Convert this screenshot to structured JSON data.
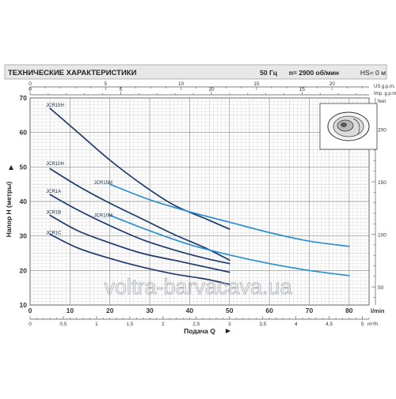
{
  "header": {
    "title": "ТЕХНИЧЕСКИЕ ХАРАКТЕРИСТИКИ",
    "freq": "50 Гц",
    "speed": "n= 2900 об/мин",
    "hs": "HS= 0 м"
  },
  "watermark": "voltra-barvacava.ua",
  "chart_data": {
    "type": "line",
    "title": "ТЕХНИЧЕСКИЕ ХАРАКТЕРИСТИКИ",
    "xlabel": "Подача Q",
    "ylabel": "Напор H (метры)",
    "x_unit": "l/min",
    "x2_unit": "m³/h",
    "top_units": [
      "US g.p.m.",
      "Imp. g.p.m."
    ],
    "right_unit": "feet",
    "xlim": [
      0,
      85
    ],
    "ylim": [
      10,
      70
    ],
    "grid": true,
    "x_ticks": [
      "0",
      "10",
      "20",
      "30",
      "40",
      "50",
      "60",
      "70",
      "80"
    ],
    "x_tick_values": [
      0,
      10,
      20,
      30,
      40,
      50,
      60,
      70,
      80
    ],
    "y_ticks": [
      "10",
      "20",
      "30",
      "40",
      "50",
      "60",
      "70"
    ],
    "y_tick_values": [
      10,
      20,
      30,
      40,
      50,
      60,
      70
    ],
    "x2_ticks": [
      "0",
      "0,5",
      "1",
      "1,5",
      "2",
      "2,5",
      "3",
      "3,5",
      "4",
      "4,5",
      "5"
    ],
    "x2_tick_values": [
      0,
      0.5,
      1,
      1.5,
      2,
      2.5,
      3,
      3.5,
      4,
      4.5,
      5
    ],
    "us_ticks": [
      "0",
      "5",
      "10",
      "15",
      "20"
    ],
    "us_tick_values": [
      0,
      5,
      10,
      15,
      20
    ],
    "imp_ticks": [
      "0",
      "5",
      "10",
      "15"
    ],
    "imp_tick_values": [
      0,
      5,
      10,
      15
    ],
    "feet_ticks": [
      "50",
      "100",
      "150",
      "200"
    ],
    "feet_tick_values": [
      50,
      100,
      150,
      200
    ],
    "series": [
      {
        "name": "JCR15H",
        "color": "#1c3a6e",
        "label_at": [
          4,
          67.5
        ],
        "x": [
          5,
          12,
          20,
          28,
          36,
          44,
          50
        ],
        "y": [
          67,
          60,
          52,
          45,
          39,
          35,
          32
        ]
      },
      {
        "name": "JCR10H",
        "color": "#1c3a6e",
        "label_at": [
          4,
          50.5
        ],
        "x": [
          5,
          12,
          20,
          28,
          36,
          44,
          50
        ],
        "y": [
          49.5,
          44.5,
          39.5,
          35,
          30.5,
          26.5,
          23
        ]
      },
      {
        "name": "JCR1A",
        "color": "#1c3a6e",
        "label_at": [
          4,
          42.5
        ],
        "x": [
          5,
          12,
          20,
          28,
          36,
          44,
          50
        ],
        "y": [
          42,
          37.5,
          33,
          29,
          26,
          23.5,
          22
        ]
      },
      {
        "name": "JCR1B",
        "color": "#1c3a6e",
        "label_at": [
          4,
          36.5
        ],
        "x": [
          5,
          12,
          20,
          28,
          36,
          44,
          50
        ],
        "y": [
          36,
          31.5,
          28,
          25,
          23,
          21,
          19.5
        ]
      },
      {
        "name": "JCR1C",
        "color": "#1c3a6e",
        "label_at": [
          4,
          30.5
        ],
        "x": [
          5,
          12,
          20,
          28,
          36,
          44,
          50
        ],
        "y": [
          30.5,
          26.5,
          23.5,
          21,
          19,
          17.5,
          16
        ]
      },
      {
        "name": "JCR15M",
        "color": "#2b8fd0",
        "label_at": [
          16,
          45
        ],
        "x": [
          20,
          30,
          40,
          50,
          60,
          70,
          80
        ],
        "y": [
          45,
          40.5,
          37,
          34,
          31,
          28.5,
          27
        ]
      },
      {
        "name": "JCR10M",
        "color": "#2b8fd0",
        "label_at": [
          16,
          35.5
        ],
        "x": [
          20,
          30,
          40,
          50,
          60,
          70,
          80
        ],
        "y": [
          36,
          31.5,
          27.5,
          24.5,
          22,
          20,
          18.5
        ]
      }
    ]
  }
}
